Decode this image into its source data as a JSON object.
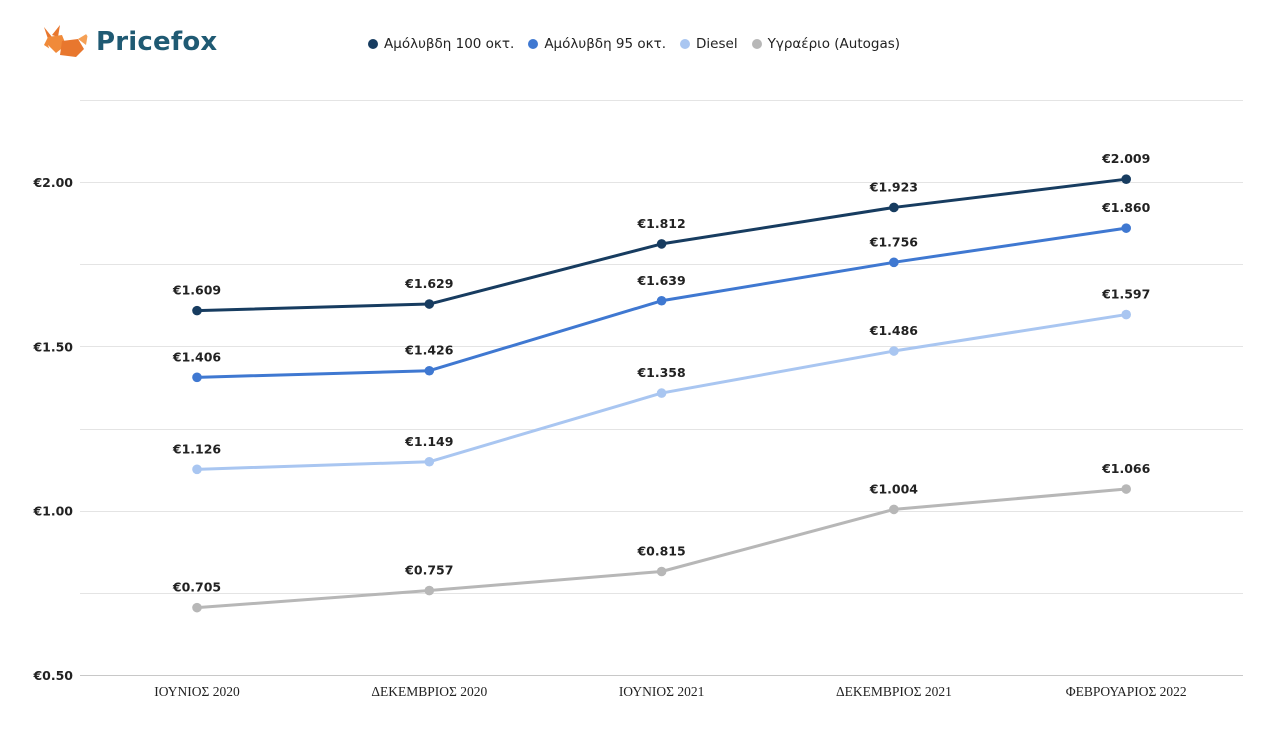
{
  "brand": {
    "name": "Pricefox"
  },
  "chart_data": {
    "type": "line",
    "categories": [
      "ΙΟΥΝΙΟΣ 2020",
      "ΔΕΚΕΜΒΡΙΟΣ 2020",
      "ΙΟΥΝΙΟΣ 2021",
      "ΔΕΚΕΜΒΡΙΟΣ 2021",
      "ΦΕΒΡΟΥΑΡΙΟΣ 2022"
    ],
    "ylim": [
      0.5,
      2.25
    ],
    "yticks": [
      0.5,
      1.0,
      1.5,
      2.0
    ],
    "ytick_labels": [
      "€0.50",
      "€1.00",
      "€1.50",
      "€2.00"
    ],
    "grid": true,
    "legend_position": "top",
    "series": [
      {
        "name": "Αμόλυβδη 100 οκτ.",
        "color": "#173c60",
        "values": [
          1.609,
          1.629,
          1.812,
          1.923,
          2.009
        ],
        "labels": [
          "€1.609",
          "€1.629",
          "€1.812",
          "€1.923",
          "€2.009"
        ]
      },
      {
        "name": "Αμόλυβδη 95 οκτ.",
        "color": "#3f78d1",
        "values": [
          1.406,
          1.426,
          1.639,
          1.756,
          1.86
        ],
        "labels": [
          "€1.406",
          "€1.426",
          "€1.639",
          "€1.756",
          "€1.860"
        ]
      },
      {
        "name": "Diesel",
        "color": "#a9c6f1",
        "values": [
          1.126,
          1.149,
          1.358,
          1.486,
          1.597
        ],
        "labels": [
          "€1.126",
          "€1.149",
          "€1.358",
          "€1.486",
          "€1.597"
        ]
      },
      {
        "name": "Υγραέριο (Autogas)",
        "color": "#b7b7b7",
        "values": [
          0.705,
          0.757,
          0.815,
          1.004,
          1.066
        ],
        "labels": [
          "€0.705",
          "€0.757",
          "€0.815",
          "€1.004",
          "€1.066"
        ]
      }
    ]
  }
}
